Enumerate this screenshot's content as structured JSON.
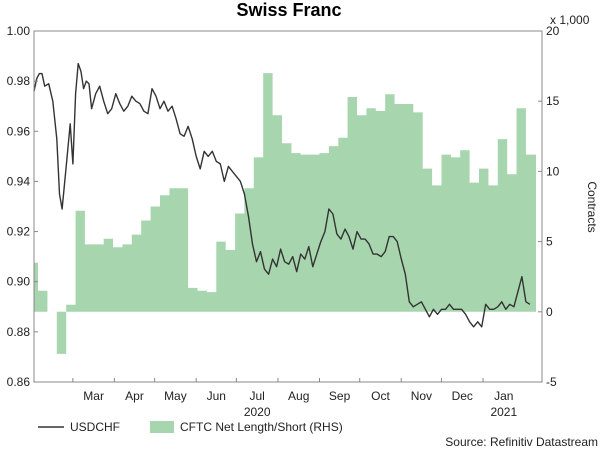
{
  "chart_data": {
    "type": "line",
    "title": "Swiss Franc",
    "left_axis": {
      "min": 0.86,
      "max": 1.0,
      "ticks": [
        "1.00",
        "0.98",
        "0.96",
        "0.94",
        "0.92",
        "0.90",
        "0.88",
        "0.86"
      ],
      "tick_values": [
        1.0,
        0.98,
        0.96,
        0.94,
        0.92,
        0.9,
        0.88,
        0.86
      ]
    },
    "right_axis": {
      "label": "Contracts",
      "multiplier": "x 1,000",
      "min": -5,
      "max": 20,
      "ticks": [
        "20",
        "15",
        "10",
        "5",
        "0",
        "-5"
      ],
      "tick_values": [
        20,
        15,
        10,
        5,
        0,
        -5
      ]
    },
    "x_axis": {
      "start": "2020-02-01",
      "end": "2021-02-14",
      "months": [
        {
          "label": "Mar",
          "date": "2020-03-01"
        },
        {
          "label": "Apr",
          "date": "2020-04-01"
        },
        {
          "label": "May",
          "date": "2020-05-01"
        },
        {
          "label": "Jun",
          "date": "2020-06-01"
        },
        {
          "label": "Jul",
          "date": "2020-07-01"
        },
        {
          "label": "Aug",
          "date": "2020-08-01"
        },
        {
          "label": "Sep",
          "date": "2020-09-01"
        },
        {
          "label": "Oct",
          "date": "2020-10-01"
        },
        {
          "label": "Nov",
          "date": "2020-11-01"
        },
        {
          "label": "Dec",
          "date": "2020-12-01"
        },
        {
          "label": "Jan",
          "date": "2021-01-01"
        }
      ],
      "years": [
        {
          "label": "2020",
          "date": "2020-07-01"
        },
        {
          "label": "2021",
          "date": "2021-01-01"
        }
      ]
    },
    "series": [
      {
        "name": "USDCHF",
        "color": "#333333",
        "x": [
          "2020-02-01",
          "2020-02-03",
          "2020-02-05",
          "2020-02-07",
          "2020-02-09",
          "2020-02-12",
          "2020-02-15",
          "2020-02-18",
          "2020-02-20",
          "2020-02-22",
          "2020-02-25",
          "2020-02-28",
          "2020-03-01",
          "2020-03-03",
          "2020-03-05",
          "2020-03-07",
          "2020-03-09",
          "2020-03-11",
          "2020-03-13",
          "2020-03-15",
          "2020-03-18",
          "2020-03-21",
          "2020-03-24",
          "2020-03-27",
          "2020-03-30",
          "2020-04-02",
          "2020-04-05",
          "2020-04-08",
          "2020-04-11",
          "2020-04-14",
          "2020-04-17",
          "2020-04-20",
          "2020-04-23",
          "2020-04-26",
          "2020-04-29",
          "2020-05-02",
          "2020-05-05",
          "2020-05-08",
          "2020-05-11",
          "2020-05-14",
          "2020-05-17",
          "2020-05-20",
          "2020-05-23",
          "2020-05-26",
          "2020-05-29",
          "2020-06-01",
          "2020-06-04",
          "2020-06-07",
          "2020-06-10",
          "2020-06-13",
          "2020-06-16",
          "2020-06-19",
          "2020-06-22",
          "2020-06-25",
          "2020-06-28",
          "2020-07-01",
          "2020-07-04",
          "2020-07-07",
          "2020-07-10",
          "2020-07-13",
          "2020-07-16",
          "2020-07-19",
          "2020-07-22",
          "2020-07-25",
          "2020-07-28",
          "2020-07-31",
          "2020-08-03",
          "2020-08-06",
          "2020-08-09",
          "2020-08-12",
          "2020-08-15",
          "2020-08-18",
          "2020-08-21",
          "2020-08-24",
          "2020-08-27",
          "2020-08-30",
          "2020-09-02",
          "2020-09-05",
          "2020-09-08",
          "2020-09-11",
          "2020-09-14",
          "2020-09-17",
          "2020-09-20",
          "2020-09-23",
          "2020-09-26",
          "2020-09-29",
          "2020-10-02",
          "2020-10-05",
          "2020-10-08",
          "2020-10-11",
          "2020-10-14",
          "2020-10-17",
          "2020-10-20",
          "2020-10-23",
          "2020-10-26",
          "2020-10-29",
          "2020-11-01",
          "2020-11-04",
          "2020-11-07",
          "2020-11-10",
          "2020-11-13",
          "2020-11-16",
          "2020-11-19",
          "2020-11-22",
          "2020-11-25",
          "2020-11-28",
          "2020-12-01",
          "2020-12-04",
          "2020-12-07",
          "2020-12-10",
          "2020-12-13",
          "2020-12-16",
          "2020-12-19",
          "2020-12-22",
          "2020-12-25",
          "2020-12-28",
          "2020-12-31",
          "2021-01-03",
          "2021-01-06",
          "2021-01-09",
          "2021-01-12",
          "2021-01-15",
          "2021-01-18",
          "2021-01-21",
          "2021-01-24",
          "2021-01-27",
          "2021-01-30",
          "2021-02-02",
          "2021-02-05"
        ],
        "values": [
          0.976,
          0.981,
          0.983,
          0.983,
          0.978,
          0.979,
          0.972,
          0.957,
          0.935,
          0.929,
          0.946,
          0.963,
          0.947,
          0.975,
          0.987,
          0.984,
          0.977,
          0.98,
          0.979,
          0.969,
          0.975,
          0.978,
          0.972,
          0.967,
          0.969,
          0.975,
          0.971,
          0.968,
          0.97,
          0.974,
          0.972,
          0.971,
          0.968,
          0.967,
          0.977,
          0.974,
          0.969,
          0.972,
          0.968,
          0.97,
          0.965,
          0.959,
          0.958,
          0.962,
          0.957,
          0.95,
          0.945,
          0.952,
          0.95,
          0.952,
          0.948,
          0.947,
          0.94,
          0.946,
          0.944,
          0.942,
          0.94,
          0.935,
          0.926,
          0.915,
          0.908,
          0.912,
          0.905,
          0.903,
          0.909,
          0.906,
          0.913,
          0.908,
          0.907,
          0.91,
          0.904,
          0.911,
          0.909,
          0.914,
          0.906,
          0.911,
          0.916,
          0.92,
          0.929,
          0.927,
          0.919,
          0.917,
          0.921,
          0.918,
          0.913,
          0.92,
          0.917,
          0.917,
          0.915,
          0.911,
          0.911,
          0.91,
          0.912,
          0.918,
          0.918,
          0.916,
          0.909,
          0.903,
          0.892,
          0.89,
          0.891,
          0.892,
          0.889,
          0.886,
          0.889,
          0.887,
          0.889,
          0.889,
          0.891,
          0.889,
          0.889,
          0.889,
          0.887,
          0.884,
          0.882,
          0.884,
          0.882,
          0.891,
          0.889,
          0.889,
          0.89,
          0.892,
          0.889,
          0.891,
          0.89,
          0.896,
          0.902,
          0.892,
          0.891
        ]
      },
      {
        "name": "CFTC Net Length/Short (RHS)",
        "color": "#a6d5ae",
        "x": [
          "2020-02-01",
          "2020-02-04",
          "2020-02-11",
          "2020-02-18",
          "2020-02-25",
          "2020-03-03",
          "2020-03-10",
          "2020-03-17",
          "2020-03-24",
          "2020-03-31",
          "2020-04-07",
          "2020-04-14",
          "2020-04-21",
          "2020-04-28",
          "2020-05-05",
          "2020-05-12",
          "2020-05-19",
          "2020-05-26",
          "2020-06-02",
          "2020-06-09",
          "2020-06-16",
          "2020-06-23",
          "2020-06-30",
          "2020-07-07",
          "2020-07-14",
          "2020-07-21",
          "2020-07-28",
          "2020-08-04",
          "2020-08-11",
          "2020-08-18",
          "2020-08-25",
          "2020-09-01",
          "2020-09-08",
          "2020-09-15",
          "2020-09-22",
          "2020-09-29",
          "2020-10-06",
          "2020-10-13",
          "2020-10-20",
          "2020-10-27",
          "2020-11-03",
          "2020-11-10",
          "2020-11-17",
          "2020-11-24",
          "2020-12-01",
          "2020-12-08",
          "2020-12-15",
          "2020-12-22",
          "2020-12-29",
          "2021-01-05",
          "2021-01-12",
          "2021-01-19",
          "2021-01-26",
          "2021-02-02"
        ],
        "values": [
          3.5,
          1.5,
          0.0,
          -3.0,
          0.5,
          7.2,
          4.8,
          4.8,
          5.2,
          4.6,
          4.8,
          5.5,
          6.5,
          7.5,
          8.3,
          8.8,
          8.8,
          1.7,
          1.5,
          1.4,
          5.0,
          4.4,
          7.0,
          8.8,
          11.0,
          17.0,
          14.0,
          12.0,
          11.3,
          11.2,
          11.2,
          11.3,
          11.8,
          12.4,
          15.3,
          14.0,
          14.5,
          14.3,
          15.5,
          14.8,
          14.8,
          14.2,
          10.2,
          9.0,
          11.2,
          11.0,
          11.5,
          9.2,
          10.2,
          9.0,
          12.3,
          9.8,
          14.5,
          11.2
        ]
      }
    ],
    "legend": [
      "USDCHF",
      "CFTC Net Length/Short (RHS)"
    ],
    "grid": false
  },
  "source": "Source: Refinitiv Datastream"
}
